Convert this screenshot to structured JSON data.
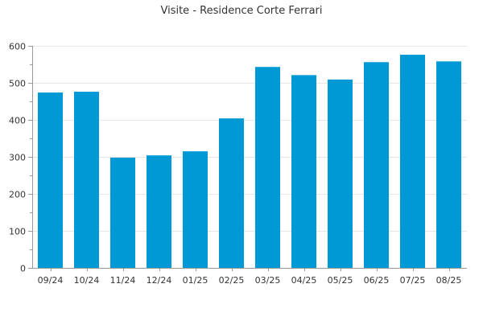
{
  "chart_data": {
    "type": "bar",
    "title": "Visite - Residence Corte Ferrari",
    "xlabel": "",
    "ylabel": "",
    "categories": [
      "09/24",
      "10/24",
      "11/24",
      "12/24",
      "01/25",
      "02/25",
      "03/25",
      "04/25",
      "05/25",
      "06/25",
      "07/25",
      "08/25"
    ],
    "values": [
      474,
      476,
      298,
      304,
      315,
      404,
      543,
      521,
      509,
      556,
      576,
      558
    ],
    "ylim": [
      0,
      600
    ],
    "yticks": [
      0,
      100,
      200,
      300,
      400,
      500,
      600
    ],
    "grid": true,
    "legend": "none",
    "colors": {
      "bar": "#0099d6",
      "grid": "#e6e6e6",
      "axis": "#999999",
      "text": "#333333"
    }
  }
}
